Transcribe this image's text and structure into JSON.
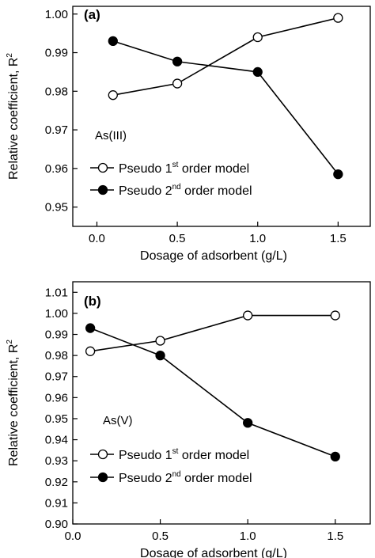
{
  "chart_data": [
    {
      "type": "line",
      "panel_label": "(a)",
      "annotation": "As(III)",
      "xlabel": "Dosage of adsorbent (g/L)",
      "ylabel": "Relative coefficient, R",
      "ylabel_superscript": "2",
      "xlim": [
        -0.15,
        1.7
      ],
      "ylim": [
        0.945,
        1.002
      ],
      "xticks": [
        "0.0",
        "0.5",
        "1.0",
        "1.5"
      ],
      "yticks": [
        "0.95",
        "0.96",
        "0.97",
        "0.98",
        "0.99",
        "1.00"
      ],
      "x": [
        0.1,
        0.5,
        1.0,
        1.5
      ],
      "series": [
        {
          "name": "Pseudo 1st order model",
          "legend_prefix": "Pseudo 1",
          "legend_sup": "st",
          "legend_suffix": " order model",
          "marker": "open-circle",
          "values": [
            0.979,
            0.982,
            0.994,
            0.999
          ]
        },
        {
          "name": "Pseudo 2nd order model",
          "legend_prefix": "Pseudo 2",
          "legend_sup": "nd",
          "legend_suffix": " order model",
          "marker": "filled-circle",
          "values": [
            0.993,
            0.9877,
            0.985,
            0.9585
          ]
        }
      ]
    },
    {
      "type": "line",
      "panel_label": "(b)",
      "annotation": "As(V)",
      "xlabel": "Dosage of adsorbent (g/L)",
      "ylabel": "Relative coefficient, R",
      "ylabel_superscript": "2",
      "xlim": [
        0.0,
        1.7
      ],
      "ylim": [
        0.9,
        1.015
      ],
      "xticks": [
        "0.0",
        "0.5",
        "1.0",
        "1.5"
      ],
      "yticks": [
        "0.90",
        "0.91",
        "0.92",
        "0.93",
        "0.94",
        "0.95",
        "0.96",
        "0.97",
        "0.98",
        "0.99",
        "1.00",
        "1.01"
      ],
      "x": [
        0.1,
        0.5,
        1.0,
        1.5
      ],
      "series": [
        {
          "name": "Pseudo 1st order model",
          "legend_prefix": "Pseudo 1",
          "legend_sup": "st",
          "legend_suffix": " order model",
          "marker": "open-circle",
          "values": [
            0.982,
            0.987,
            0.999,
            0.999
          ]
        },
        {
          "name": "Pseudo 2nd order model",
          "legend_prefix": "Pseudo 2",
          "legend_sup": "nd",
          "legend_suffix": " order model",
          "marker": "filled-circle",
          "values": [
            0.993,
            0.98,
            0.948,
            0.932
          ]
        }
      ]
    }
  ]
}
